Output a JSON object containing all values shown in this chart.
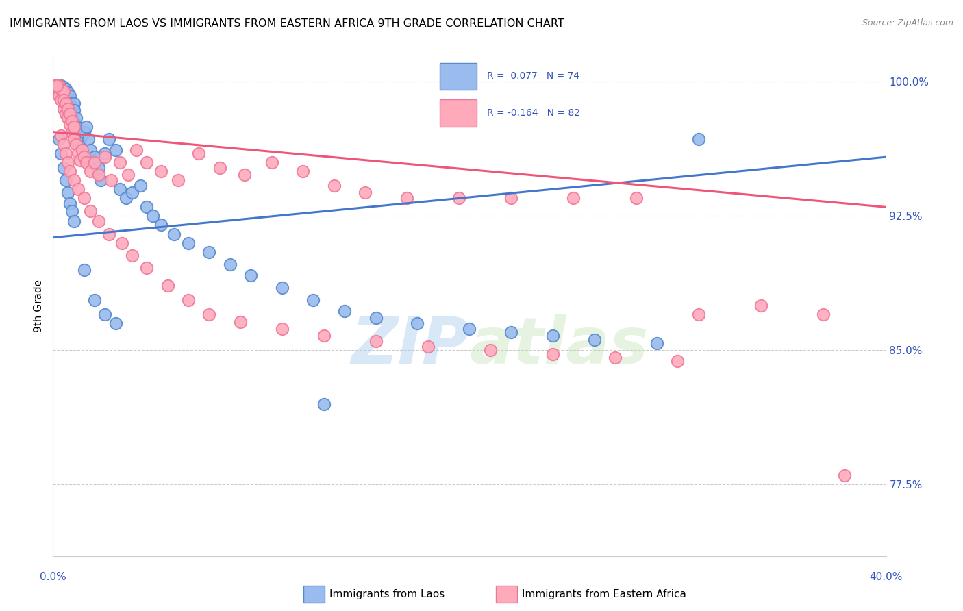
{
  "title": "IMMIGRANTS FROM LAOS VS IMMIGRANTS FROM EASTERN AFRICA 9TH GRADE CORRELATION CHART",
  "source": "Source: ZipAtlas.com",
  "ylabel": "9th Grade",
  "xlim": [
    0.0,
    0.4
  ],
  "ylim": [
    0.735,
    1.015
  ],
  "ytick_vals": [
    0.775,
    0.85,
    0.925,
    1.0
  ],
  "ytick_labels": [
    "77.5%",
    "85.0%",
    "92.5%",
    "100.0%"
  ],
  "xtick_vals": [
    0.0,
    0.05,
    0.1,
    0.15,
    0.2,
    0.25,
    0.3,
    0.35,
    0.4
  ],
  "blue_fill": "#99BBEE",
  "blue_edge": "#5588CC",
  "pink_fill": "#FFAABB",
  "pink_edge": "#EE7799",
  "blue_line": "#4477CC",
  "pink_line": "#EE5577",
  "legend_text_color": "#3355BB",
  "watermark_color": "#AACCEE",
  "blue_trend": [
    0.913,
    0.958
  ],
  "pink_trend": [
    0.972,
    0.93
  ],
  "blue_x": [
    0.002,
    0.003,
    0.003,
    0.004,
    0.004,
    0.005,
    0.005,
    0.005,
    0.006,
    0.006,
    0.006,
    0.007,
    0.007,
    0.007,
    0.008,
    0.008,
    0.009,
    0.009,
    0.01,
    0.01,
    0.01,
    0.011,
    0.011,
    0.012,
    0.012,
    0.013,
    0.014,
    0.015,
    0.016,
    0.017,
    0.018,
    0.019,
    0.02,
    0.022,
    0.023,
    0.025,
    0.027,
    0.03,
    0.032,
    0.035,
    0.038,
    0.042,
    0.045,
    0.048,
    0.052,
    0.058,
    0.065,
    0.075,
    0.085,
    0.095,
    0.11,
    0.125,
    0.14,
    0.155,
    0.175,
    0.2,
    0.22,
    0.24,
    0.26,
    0.29,
    0.003,
    0.004,
    0.005,
    0.006,
    0.007,
    0.008,
    0.009,
    0.01,
    0.015,
    0.02,
    0.025,
    0.03,
    0.13,
    0.31
  ],
  "blue_y": [
    0.998,
    0.998,
    0.997,
    0.998,
    0.996,
    0.997,
    0.995,
    0.993,
    0.996,
    0.993,
    0.988,
    0.994,
    0.99,
    0.986,
    0.992,
    0.988,
    0.986,
    0.98,
    0.988,
    0.984,
    0.978,
    0.98,
    0.975,
    0.97,
    0.965,
    0.968,
    0.97,
    0.972,
    0.975,
    0.968,
    0.962,
    0.955,
    0.958,
    0.952,
    0.945,
    0.96,
    0.968,
    0.962,
    0.94,
    0.935,
    0.938,
    0.942,
    0.93,
    0.925,
    0.92,
    0.915,
    0.91,
    0.905,
    0.898,
    0.892,
    0.885,
    0.878,
    0.872,
    0.868,
    0.865,
    0.862,
    0.86,
    0.858,
    0.856,
    0.854,
    0.968,
    0.96,
    0.952,
    0.945,
    0.938,
    0.932,
    0.928,
    0.922,
    0.895,
    0.878,
    0.87,
    0.865,
    0.82,
    0.968
  ],
  "pink_x": [
    0.001,
    0.001,
    0.002,
    0.002,
    0.003,
    0.003,
    0.003,
    0.004,
    0.004,
    0.005,
    0.005,
    0.005,
    0.006,
    0.006,
    0.007,
    0.007,
    0.008,
    0.008,
    0.009,
    0.009,
    0.01,
    0.01,
    0.011,
    0.012,
    0.013,
    0.014,
    0.015,
    0.016,
    0.018,
    0.02,
    0.022,
    0.025,
    0.028,
    0.032,
    0.036,
    0.04,
    0.045,
    0.052,
    0.06,
    0.07,
    0.08,
    0.092,
    0.105,
    0.12,
    0.135,
    0.15,
    0.17,
    0.195,
    0.22,
    0.25,
    0.28,
    0.31,
    0.34,
    0.37,
    0.004,
    0.005,
    0.006,
    0.007,
    0.008,
    0.01,
    0.012,
    0.015,
    0.018,
    0.022,
    0.027,
    0.033,
    0.038,
    0.045,
    0.055,
    0.065,
    0.075,
    0.09,
    0.11,
    0.13,
    0.155,
    0.18,
    0.21,
    0.24,
    0.27,
    0.3,
    0.002,
    0.38
  ],
  "pink_y": [
    0.998,
    0.995,
    0.998,
    0.994,
    0.998,
    0.995,
    0.992,
    0.996,
    0.99,
    0.995,
    0.99,
    0.985,
    0.988,
    0.982,
    0.985,
    0.98,
    0.982,
    0.976,
    0.978,
    0.972,
    0.975,
    0.968,
    0.965,
    0.96,
    0.956,
    0.962,
    0.958,
    0.955,
    0.95,
    0.955,
    0.948,
    0.958,
    0.945,
    0.955,
    0.948,
    0.962,
    0.955,
    0.95,
    0.945,
    0.96,
    0.952,
    0.948,
    0.955,
    0.95,
    0.942,
    0.938,
    0.935,
    0.935,
    0.935,
    0.935,
    0.935,
    0.87,
    0.875,
    0.87,
    0.97,
    0.965,
    0.96,
    0.955,
    0.95,
    0.945,
    0.94,
    0.935,
    0.928,
    0.922,
    0.915,
    0.91,
    0.903,
    0.896,
    0.886,
    0.878,
    0.87,
    0.866,
    0.862,
    0.858,
    0.855,
    0.852,
    0.85,
    0.848,
    0.846,
    0.844,
    0.998,
    0.78
  ]
}
